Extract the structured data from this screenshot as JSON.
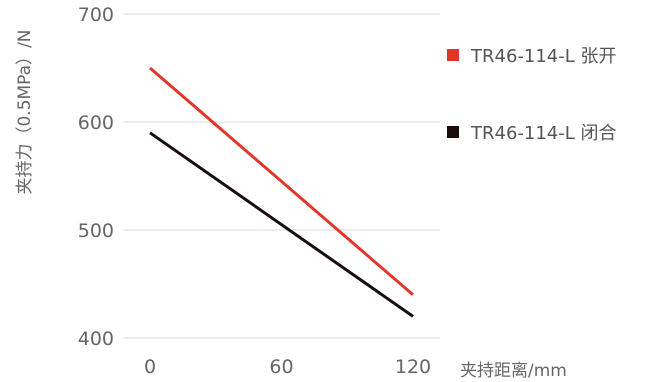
{
  "chart_data": {
    "type": "line",
    "title": "",
    "xlabel": "夹持距离/mm",
    "ylabel": "夹持力（0.5MPa）/N",
    "x": [
      0,
      120
    ],
    "x_ticks": [
      "0",
      "60",
      "120"
    ],
    "y_ticks": [
      "400",
      "500",
      "600",
      "700"
    ],
    "xlim": [
      0,
      120
    ],
    "ylim": [
      400,
      700
    ],
    "grid": "horizontal",
    "legend_position": "right",
    "series": [
      {
        "name": "TR46-114-L  张开",
        "color": "#e2362a",
        "values": [
          650,
          440
        ]
      },
      {
        "name": "TR46-114-L  闭合",
        "color": "#1a0d0d",
        "values": [
          590,
          420
        ]
      }
    ]
  }
}
